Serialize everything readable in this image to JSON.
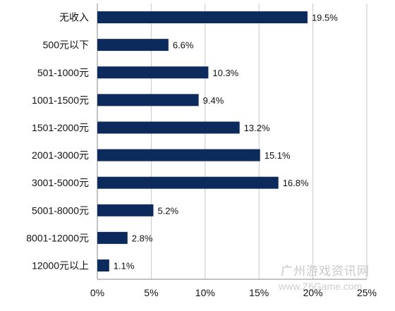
{
  "chart_data": {
    "type": "bar",
    "orientation": "horizontal",
    "categories": [
      "无收入",
      "500元以下",
      "501-1000元",
      "1001-1500元",
      "1501-2000元",
      "2001-3000元",
      "3001-5000元",
      "5001-8000元",
      "8001-12000元",
      "12000元以上"
    ],
    "values": [
      19.5,
      6.6,
      10.3,
      9.4,
      13.2,
      15.1,
      16.8,
      5.2,
      2.8,
      1.1
    ],
    "value_labels": [
      "19.5%",
      "6.6%",
      "10.3%",
      "9.4%",
      "13.2%",
      "15.1%",
      "16.8%",
      "5.2%",
      "2.8%",
      "1.1%"
    ],
    "x_ticks": [
      "0%",
      "5%",
      "10%",
      "15%",
      "20%",
      "25%"
    ],
    "xlim": [
      0,
      25
    ],
    "grid": true,
    "bar_color": "#0d2a5c"
  },
  "watermark": {
    "text": "广州游戏资讯网",
    "url": "www.Z6Game.com"
  }
}
